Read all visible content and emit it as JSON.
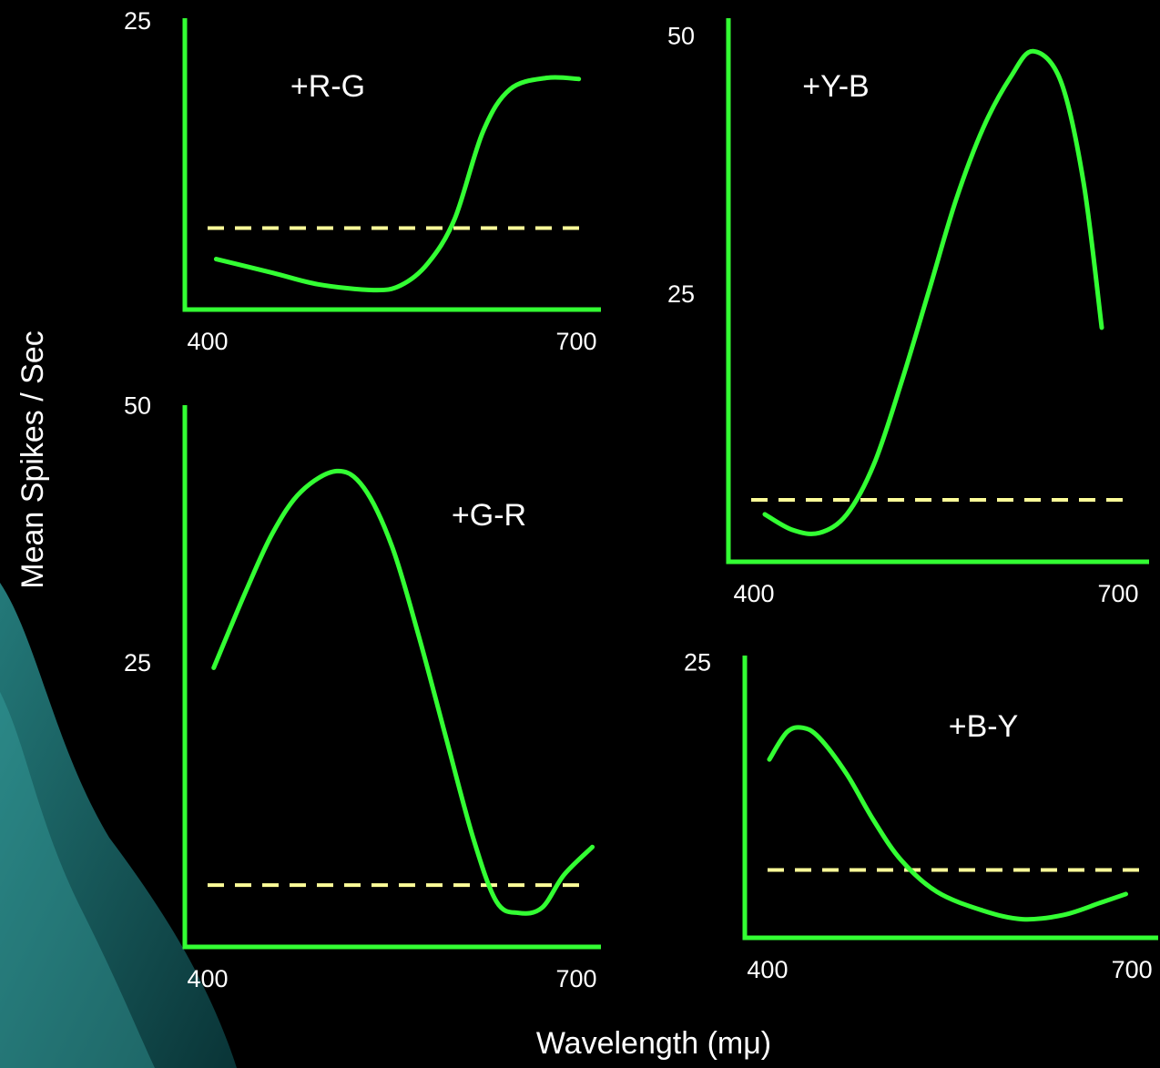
{
  "xlabel": "Wavelength (mμ)",
  "ylabel": "Mean Spikes / Sec",
  "chart_data": [
    {
      "type": "line",
      "title": "+R-G",
      "xlim": [
        381.5,
        720
      ],
      "xticks": [
        400,
        700
      ],
      "ylim": [
        0,
        25.4
      ],
      "yticks": [
        25
      ],
      "axis_color": "#33ff33",
      "x": [
        407,
        453,
        490,
        535,
        557,
        579,
        601,
        624,
        646,
        676,
        702
      ],
      "series": [
        {
          "color": "#33ff33",
          "values": [
            4.4,
            3.2,
            2.2,
            1.7,
            2.1,
            4.0,
            7.9,
            15.5,
            19.2,
            20.2,
            20.1
          ]
        }
      ],
      "reference_line": {
        "value": 7.1,
        "color": "#ffff99"
      }
    },
    {
      "type": "line",
      "title": "+Y-B",
      "xlim": [
        379,
        725.5
      ],
      "xticks": [
        400,
        700
      ],
      "ylim": [
        -0.8,
        51.9
      ],
      "yticks": [
        25,
        50
      ],
      "axis_color": "#33ff33",
      "x": [
        409,
        431.5,
        454,
        476.5,
        499,
        521.5,
        544,
        566.5,
        589,
        611.5,
        630,
        652.75,
        671.5,
        686.5
      ],
      "series": [
        {
          "color": "#33ff33",
          "values": [
            3.8,
            2.3,
            2.0,
            3.8,
            8.7,
            16.6,
            25.4,
            34.3,
            41.3,
            46.2,
            48.7,
            45.8,
            36.0,
            21.9
          ]
        }
      ],
      "reference_line": {
        "value": 5.2,
        "color": "#ffff99"
      }
    },
    {
      "type": "line",
      "title": "+G-R",
      "xlim": [
        381.5,
        720
      ],
      "xticks": [
        400,
        700
      ],
      "ylim": [
        -2.4,
        50.2
      ],
      "yticks": [
        25,
        50
      ],
      "axis_color": "#33ff33",
      "x": [
        405,
        431,
        453,
        476,
        505,
        527,
        550,
        572,
        594,
        616,
        635,
        653,
        672,
        690,
        713
      ],
      "series": [
        {
          "color": "#33ff33",
          "values": [
            24.7,
            32.1,
            37.8,
            41.8,
            43.8,
            42.2,
            36.5,
            27.7,
            17.9,
            8.2,
            2.0,
            0.9,
            1.4,
            4.6,
            7.3
          ]
        }
      ],
      "reference_line": {
        "value": 3.6,
        "color": "#ffff99"
      }
    },
    {
      "type": "line",
      "title": "+B-Y",
      "xlim": [
        381.3,
        721.6
      ],
      "xticks": [
        400,
        700
      ],
      "ylim": [
        0,
        25.8
      ],
      "yticks": [
        25
      ],
      "axis_color": "#33ff33",
      "x": [
        401.5,
        416,
        429,
        442.5,
        465,
        487,
        510,
        539.5,
        577,
        610,
        644,
        674,
        695
      ],
      "series": [
        {
          "color": "#33ff33",
          "values": [
            16.3,
            18.8,
            19.2,
            18.3,
            15.0,
            10.8,
            7.1,
            4.2,
            2.5,
            1.7,
            2.1,
            3.2,
            4.0
          ]
        }
      ],
      "reference_line": {
        "value": 6.2,
        "color": "#ffff99"
      }
    }
  ]
}
